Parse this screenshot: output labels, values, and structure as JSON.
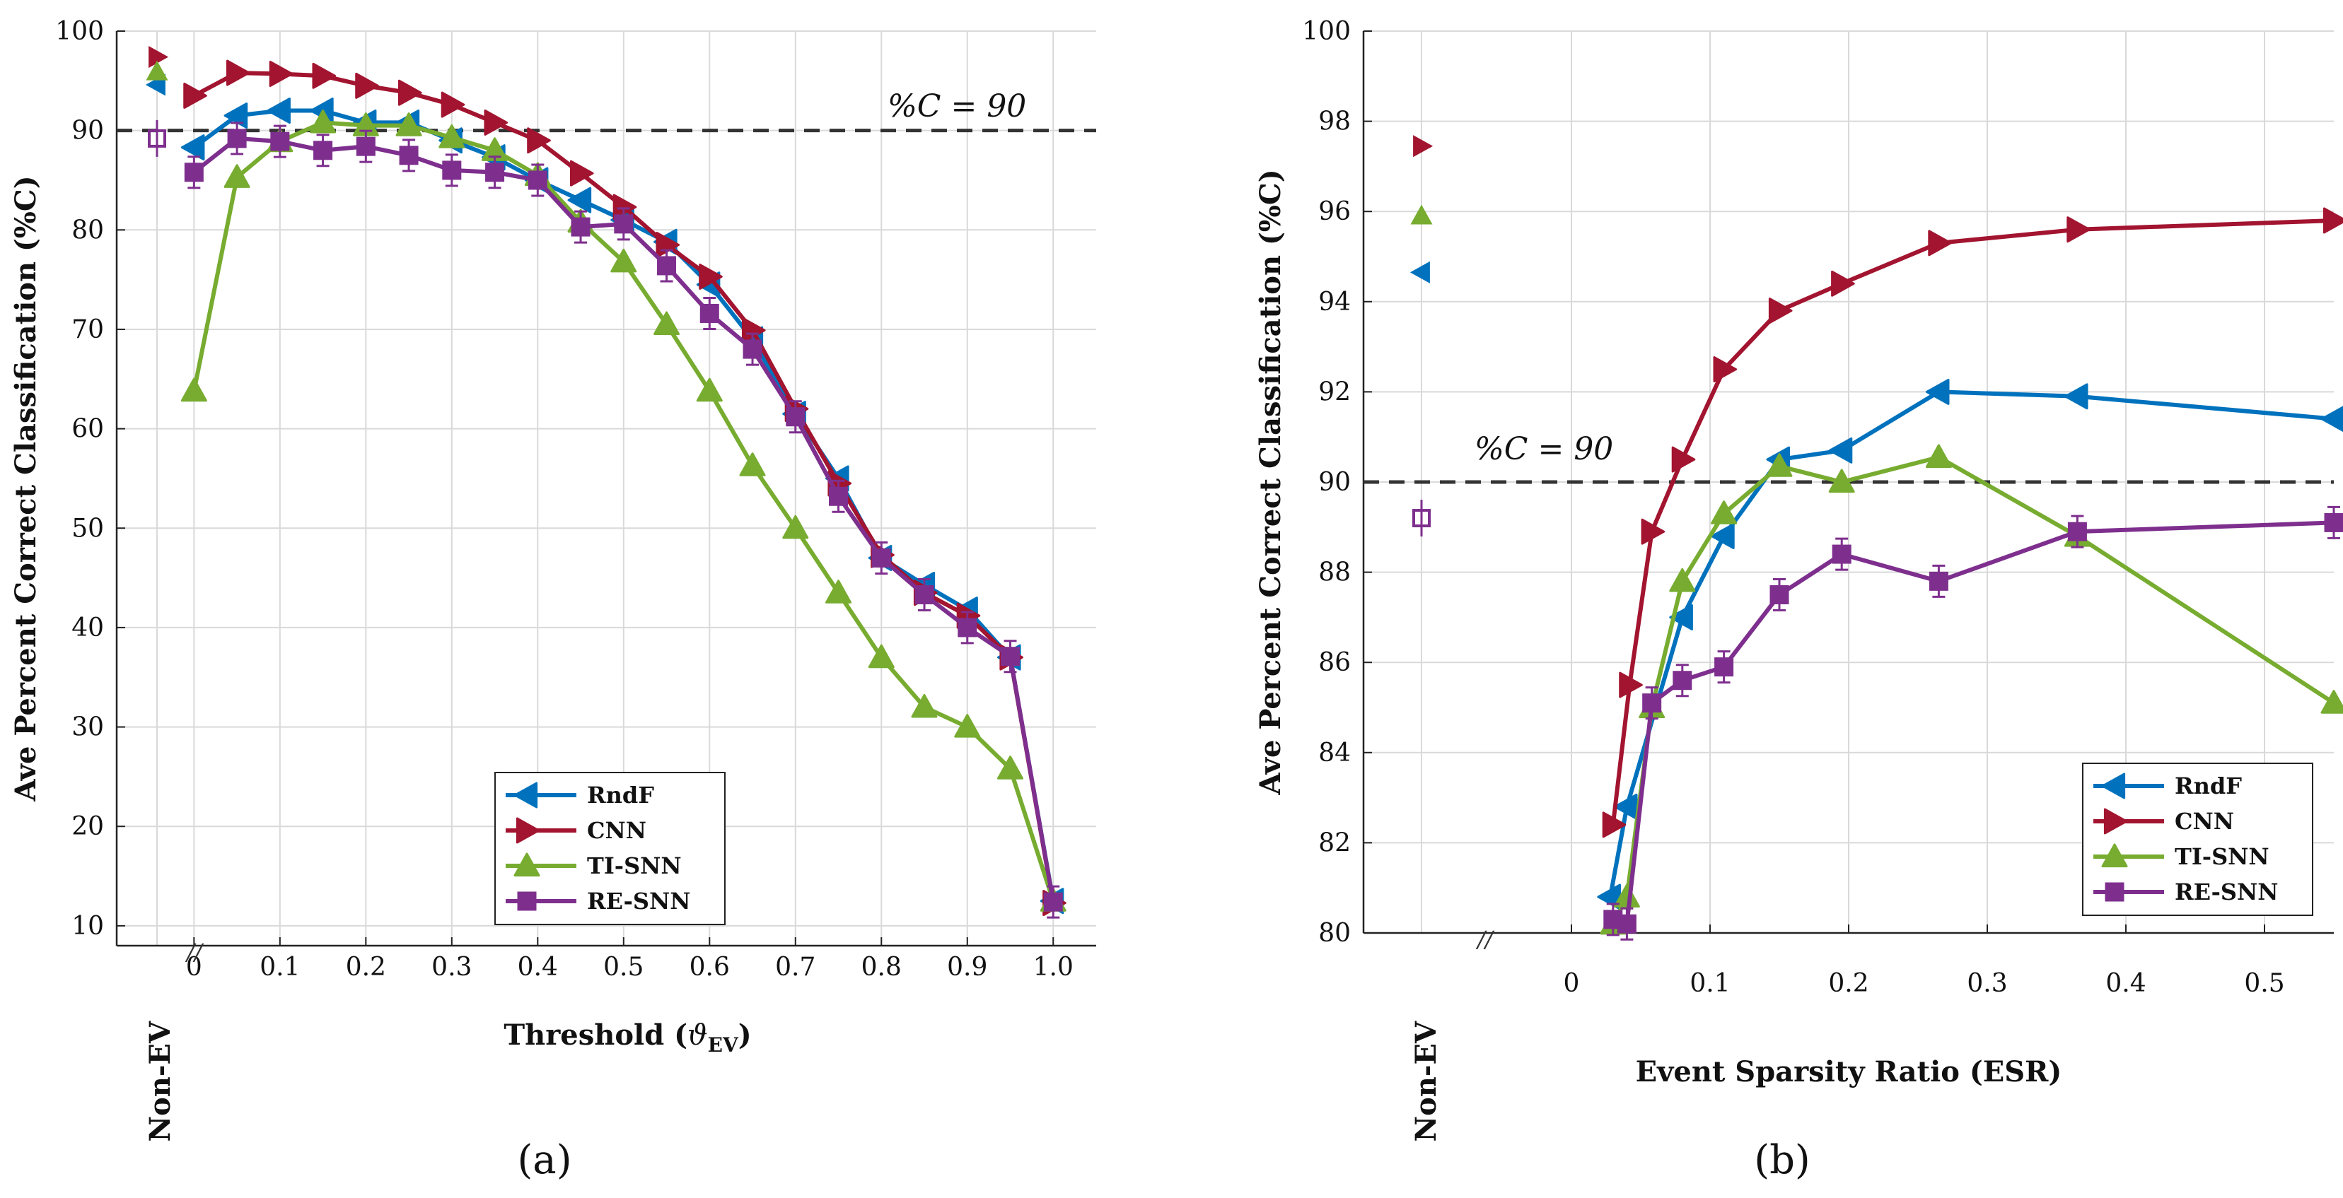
{
  "colors": {
    "RndF": "#0072BD",
    "CNN": "#A2142F",
    "TI-SNN": "#77AC30",
    "RE-SNN": "#7E2F8E",
    "grid": "#d9d9d9",
    "refline": "#333333"
  },
  "chart_data": [
    {
      "id": "a",
      "type": "line",
      "panel_label": "(a)",
      "xlabel_main": "Threshold (",
      "xlabel_sym": "ϑ",
      "xlabel_sub": "EV",
      "xlabel_end": ")",
      "ylabel": "Ave Percent Correct Classification (%C)",
      "xlim": [
        -0.09,
        1.05
      ],
      "ylim": [
        8,
        100
      ],
      "xticks": [
        0,
        0.1,
        0.2,
        0.3,
        0.4,
        0.5,
        0.6,
        0.7,
        0.8,
        0.9,
        1.0
      ],
      "xtick_labels": [
        "0",
        "0.1",
        "0.2",
        "0.3",
        "0.4",
        "0.5",
        "0.6",
        "0.7",
        "0.8",
        "0.9",
        "1.0"
      ],
      "yticks": [
        10,
        20,
        30,
        40,
        50,
        60,
        70,
        80,
        90,
        100
      ],
      "ytick_labels": [
        "10",
        "20",
        "30",
        "40",
        "50",
        "60",
        "70",
        "80",
        "90",
        "100"
      ],
      "nonev_label": "Non-EV",
      "nonev_x": -0.1,
      "break_label": "//",
      "reference": {
        "y": 90,
        "label": "%C = 90"
      },
      "legend_position": "bottom-right",
      "x": [
        0,
        0.05,
        0.1,
        0.15,
        0.2,
        0.25,
        0.3,
        0.35,
        0.4,
        0.45,
        0.5,
        0.55,
        0.6,
        0.65,
        0.7,
        0.75,
        0.8,
        0.85,
        0.9,
        0.95,
        1.0
      ],
      "series": [
        {
          "name": "RndF",
          "marker": "triangle-left",
          "nonev": 94.6,
          "values": [
            88.3,
            91.5,
            92.0,
            92.0,
            90.8,
            90.8,
            89.0,
            87.3,
            85.0,
            83.0,
            81.0,
            78.8,
            74.5,
            69.0,
            61.5,
            55.0,
            47.0,
            44.3,
            41.8,
            37.0,
            12.5
          ]
        },
        {
          "name": "CNN",
          "marker": "triangle-right",
          "nonev": 97.4,
          "values": [
            93.5,
            95.8,
            95.7,
            95.5,
            94.5,
            93.8,
            92.6,
            90.8,
            89.0,
            85.7,
            82.3,
            78.5,
            75.3,
            69.9,
            62.0,
            54.5,
            47.3,
            43.5,
            41.2,
            37.0,
            12.3
          ]
        },
        {
          "name": "TI-SNN",
          "marker": "triangle-up",
          "nonev": 95.9,
          "values": [
            63.8,
            85.3,
            88.9,
            90.8,
            90.5,
            90.5,
            89.3,
            88.0,
            85.5,
            80.8,
            76.8,
            70.5,
            63.8,
            56.3,
            50.0,
            43.5,
            37.0,
            32.0,
            30.0,
            25.8,
            12.5
          ]
        },
        {
          "name": "RE-SNN",
          "marker": "square",
          "nonev": 89.2,
          "values": [
            85.8,
            89.2,
            88.9,
            88.0,
            88.4,
            87.5,
            86.0,
            85.8,
            85.0,
            80.3,
            80.6,
            76.4,
            71.6,
            68.0,
            61.2,
            53.2,
            47.0,
            43.3,
            40.0,
            37.1,
            12.4
          ]
        }
      ]
    },
    {
      "id": "b",
      "type": "line",
      "panel_label": "(b)",
      "xlabel": "Event Sparsity Ratio (ESR)",
      "ylabel": "Ave Percent Correct Classification (%C)",
      "xlim": [
        -0.15,
        0.55
      ],
      "ylim": [
        80,
        100
      ],
      "xticks": [
        0,
        0.1,
        0.2,
        0.3,
        0.4,
        0.5
      ],
      "xtick_labels": [
        "0",
        "0.1",
        "0.2",
        "0.3",
        "0.4",
        "0.5"
      ],
      "yticks": [
        80,
        82,
        84,
        86,
        88,
        90,
        92,
        94,
        96,
        98,
        100
      ],
      "ytick_labels": [
        "80",
        "82",
        "84",
        "86",
        "88",
        "90",
        "92",
        "94",
        "96",
        "98",
        "100"
      ],
      "nonev_label": "Non-EV",
      "nonev_x": -0.1,
      "break_label": "//",
      "reference": {
        "y": 90,
        "label": "%C = 90"
      },
      "legend_position": "bottom-right",
      "series": [
        {
          "name": "RndF",
          "marker": "triangle-left",
          "nonev": 94.65,
          "x": [
            0.028,
            0.04,
            0.08,
            0.11,
            0.15,
            0.195,
            0.265,
            0.365,
            0.55
          ],
          "values": [
            80.8,
            82.8,
            87.0,
            88.8,
            90.5,
            90.7,
            92.0,
            91.9,
            91.4
          ]
        },
        {
          "name": "CNN",
          "marker": "triangle-right",
          "nonev": 97.45,
          "x": [
            0.03,
            0.042,
            0.058,
            0.08,
            0.11,
            0.15,
            0.195,
            0.265,
            0.365,
            0.55
          ],
          "values": [
            82.4,
            85.5,
            88.9,
            90.5,
            92.5,
            93.8,
            94.4,
            95.3,
            95.6,
            95.8
          ]
        },
        {
          "name": "TI-SNN",
          "marker": "triangle-up",
          "nonev": 95.9,
          "x": [
            0.03,
            0.04,
            0.058,
            0.08,
            0.11,
            0.15,
            0.195,
            0.265,
            0.365,
            0.55
          ],
          "values": [
            80.2,
            80.8,
            85.0,
            87.8,
            89.3,
            90.35,
            90.0,
            90.55,
            88.8,
            85.1
          ]
        },
        {
          "name": "RE-SNN",
          "marker": "square",
          "nonev": 89.2,
          "x": [
            0.03,
            0.04,
            0.058,
            0.08,
            0.11,
            0.15,
            0.195,
            0.265,
            0.365,
            0.55
          ],
          "values": [
            80.3,
            80.2,
            85.1,
            85.6,
            85.9,
            87.5,
            88.4,
            87.8,
            88.9,
            89.1
          ]
        }
      ]
    }
  ]
}
